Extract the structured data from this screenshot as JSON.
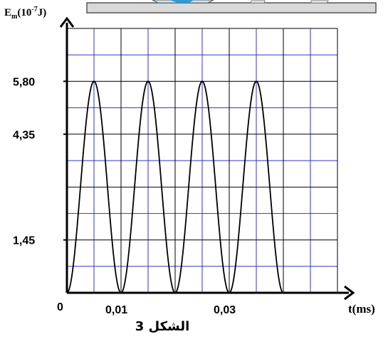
{
  "chart_data": {
    "type": "line",
    "caption": "الشكل 3",
    "ylabel": {
      "base": "E",
      "sub": "m",
      "paren_open": "(10",
      "sup": "-7",
      "paren_close": "J)"
    },
    "xlabel": "t(ms)",
    "x_unit": "ms",
    "y_unit": "10^-7 J",
    "xlim": [
      0,
      0.05
    ],
    "ylim": [
      0,
      7.25
    ],
    "x_ticks": [
      {
        "value": 0,
        "label": "0"
      },
      {
        "value": 0.01,
        "label": "0,01"
      },
      {
        "value": 0.03,
        "label": "0,03"
      }
    ],
    "y_ticks": [
      {
        "value": 1.45,
        "label": "1,45"
      },
      {
        "value": 4.35,
        "label": "4,35"
      },
      {
        "value": 5.8,
        "label": "5,80"
      }
    ],
    "series": [
      {
        "formula": "Em = 5.80 * sin^2(pi * t / 0.01)",
        "amplitude": 5.8,
        "period": 0.01,
        "t_start": 0,
        "t_end": 0.04,
        "color": "#000000"
      }
    ],
    "peaks": [
      {
        "t": 0.005,
        "Em": 5.8
      },
      {
        "t": 0.015,
        "Em": 5.8
      },
      {
        "t": 0.025,
        "Em": 5.8
      },
      {
        "t": 0.035,
        "Em": 5.8
      }
    ],
    "zeros": [
      0,
      0.01,
      0.02,
      0.03,
      0.04
    ],
    "grid": {
      "major_x_step": 0.01,
      "major_y_step": 1.45,
      "minor_x_step": 0.005,
      "minor_y_step": 0.725,
      "major_color": "#000000",
      "minor_color": "#3333cc"
    },
    "colors": {
      "axis": "#000000",
      "curve": "#000000",
      "minor_grid": "#3333cc",
      "apparatus": "#d9d9d9",
      "apparatus_accent": "#2e9bd6"
    }
  }
}
